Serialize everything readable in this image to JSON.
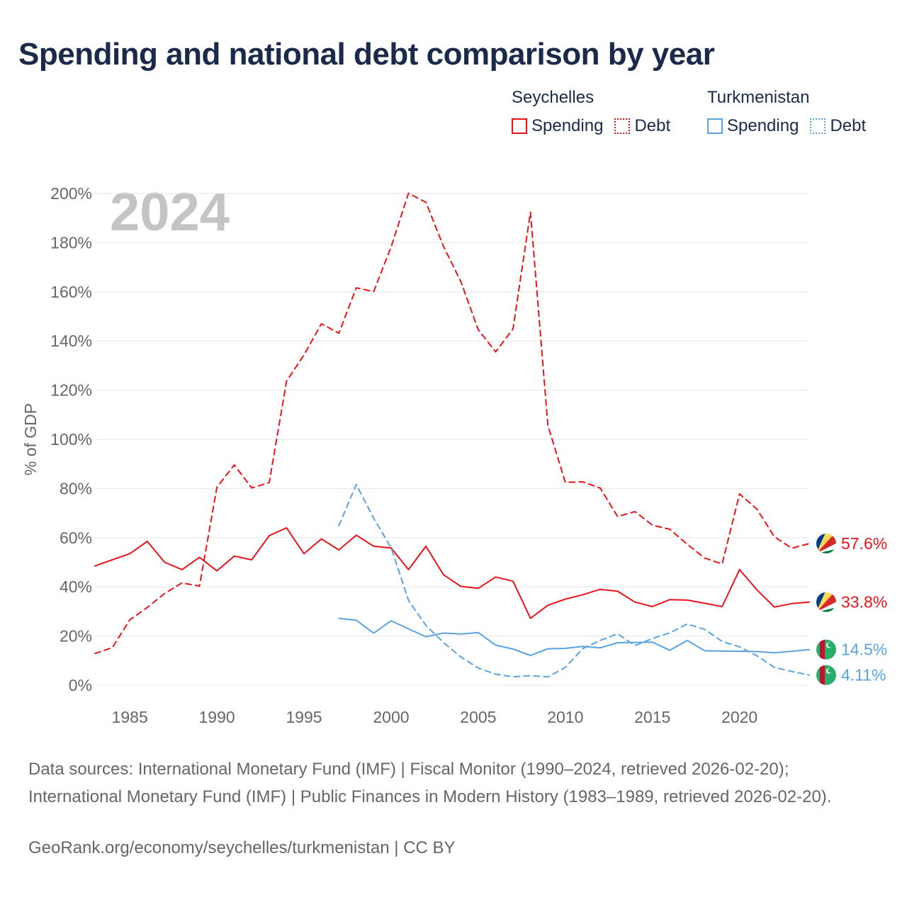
{
  "title": "Spending and national debt comparison by year",
  "legend": {
    "groups": [
      {
        "name": "Seychelles",
        "items": [
          "Spending",
          "Debt"
        ]
      },
      {
        "name": "Turkmenistan",
        "items": [
          "Spending",
          "Debt"
        ]
      }
    ]
  },
  "colors": {
    "seychelles": "#e8141b",
    "turkmenistan": "#5aa2e0",
    "grid": "#e6e6e6",
    "axis_text": "#666666",
    "year_watermark": "#c4c4c4"
  },
  "chart_data": {
    "type": "line",
    "ylabel": "% of GDP",
    "xlabel": "",
    "year_label": "2024",
    "xlim": [
      1983,
      2024
    ],
    "ylim": [
      0,
      200
    ],
    "x_ticks": [
      1985,
      1990,
      1995,
      2000,
      2005,
      2010,
      2015,
      2020
    ],
    "y_ticks": [
      0,
      20,
      40,
      60,
      80,
      100,
      120,
      140,
      160,
      180,
      200
    ],
    "y_tick_labels": [
      "0%",
      "20%",
      "40%",
      "60%",
      "80%",
      "100%",
      "120%",
      "140%",
      "160%",
      "180%",
      "200%"
    ],
    "series": [
      {
        "name": "Seychelles Spending",
        "country": "Seychelles",
        "style": "solid",
        "end_label": "33.8%",
        "x": [
          1983,
          1984,
          1985,
          1986,
          1987,
          1988,
          1989,
          1990,
          1991,
          1992,
          1993,
          1994,
          1995,
          1996,
          1997,
          1998,
          1999,
          2000,
          2001,
          2002,
          2003,
          2004,
          2005,
          2006,
          2007,
          2008,
          2009,
          2010,
          2011,
          2012,
          2013,
          2014,
          2015,
          2016,
          2017,
          2018,
          2019,
          2020,
          2021,
          2022,
          2023,
          2024
        ],
        "values": [
          48.5,
          51,
          53.5,
          58.5,
          50,
          47,
          52,
          46.5,
          52.5,
          51,
          60.8,
          64,
          53.5,
          59.5,
          55,
          61,
          56.5,
          55.8,
          47,
          56.5,
          45,
          40.2,
          39.4,
          44,
          42.3,
          27.2,
          32.5,
          35,
          36.8,
          39,
          38.2,
          33.8,
          32,
          34.8,
          34.6,
          33.3,
          32,
          47,
          38.8,
          31.8,
          33.2,
          33.8
        ]
      },
      {
        "name": "Seychelles Debt",
        "country": "Seychelles",
        "style": "dashed",
        "end_label": "57.6%",
        "x": [
          1983,
          1984,
          1985,
          1986,
          1987,
          1988,
          1989,
          1990,
          1991,
          1992,
          1993,
          1994,
          1995,
          1996,
          1997,
          1998,
          1999,
          2000,
          2001,
          2002,
          2003,
          2004,
          2005,
          2006,
          2007,
          2008,
          2009,
          2010,
          2011,
          2012,
          2013,
          2014,
          2015,
          2016,
          2017,
          2018,
          2019,
          2020,
          2021,
          2022,
          2023,
          2024
        ],
        "values": [
          12.9,
          15.3,
          26.6,
          31.6,
          37.3,
          41.6,
          40.3,
          80.5,
          89.6,
          80.2,
          82.4,
          123.7,
          134.3,
          147,
          143.1,
          161.6,
          160.1,
          178.3,
          200.1,
          196.4,
          178.6,
          164.2,
          144.6,
          135.6,
          144.9,
          192.4,
          105.7,
          82.5,
          82.7,
          80.2,
          68.6,
          70.6,
          65.1,
          63.4,
          57.3,
          51.7,
          49.3,
          77.8,
          71.6,
          60.4,
          55.7,
          57.6
        ]
      },
      {
        "name": "Turkmenistan Spending",
        "country": "Turkmenistan",
        "style": "solid",
        "end_label": "14.5%",
        "x": [
          1997,
          1998,
          1999,
          2000,
          2001,
          2002,
          2003,
          2004,
          2005,
          2006,
          2007,
          2008,
          2009,
          2010,
          2011,
          2012,
          2013,
          2014,
          2015,
          2016,
          2017,
          2018,
          2019,
          2020,
          2021,
          2022,
          2023,
          2024
        ],
        "values": [
          27.2,
          26.4,
          21.2,
          26.2,
          22.9,
          19.7,
          21.2,
          20.8,
          21.4,
          16.3,
          14.7,
          12.1,
          14.8,
          15,
          15.8,
          15.2,
          17.3,
          17.4,
          17.5,
          14.2,
          18.2,
          14,
          13.9,
          13.8,
          13.7,
          13.2,
          13.8,
          14.5
        ]
      },
      {
        "name": "Turkmenistan Debt",
        "country": "Turkmenistan",
        "style": "dashed",
        "end_label": "4.11%",
        "x": [
          1997,
          1998,
          1999,
          2000,
          2001,
          2002,
          2003,
          2004,
          2005,
          2006,
          2007,
          2008,
          2009,
          2010,
          2011,
          2012,
          2013,
          2014,
          2015,
          2016,
          2017,
          2018,
          2019,
          2020,
          2021,
          2022,
          2023,
          2024
        ],
        "values": [
          64.9,
          81.6,
          67.9,
          55.9,
          34.5,
          24.3,
          17.4,
          11.5,
          7,
          4.5,
          3.4,
          3.9,
          3.4,
          7.2,
          14.9,
          18.2,
          20.9,
          16.1,
          19,
          21.3,
          24.9,
          22.7,
          17.8,
          15.6,
          12,
          7.3,
          5.6,
          4.11
        ]
      }
    ]
  },
  "footer": {
    "source": "Data sources: International Monetary Fund (IMF) | Fiscal Monitor (1990–2024, retrieved 2026-02-20); International Monetary Fund (IMF) | Public Finances in Modern History (1983–1989, retrieved 2026-02-20).",
    "credit": "GeoRank.org/economy/seychelles/turkmenistan | CC BY"
  }
}
